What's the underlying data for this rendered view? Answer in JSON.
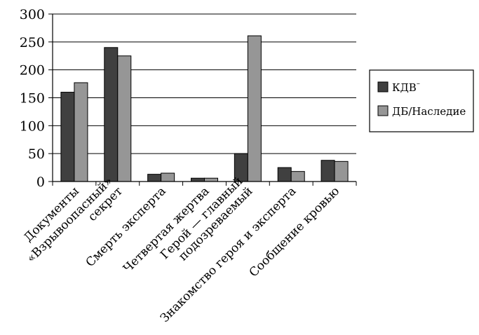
{
  "chart_data": {
    "type": "bar",
    "categories": [
      [
        "Документы"
      ],
      [
        "«Взрывоопасный»",
        "секрет"
      ],
      [
        "Смерть эксперта"
      ],
      [
        "Четвертая жертва"
      ],
      [
        "Герой — главный",
        "подозреваемый"
      ],
      [
        "Знакомство героя и эксперта"
      ],
      [
        "Сообщение кровью"
      ]
    ],
    "series": [
      {
        "name": "КДВ",
        "name_superscript": "–",
        "color": "#404040",
        "values": [
          160,
          240,
          13,
          6,
          50,
          25,
          38
        ]
      },
      {
        "name": "ДБ/Наследие",
        "color": "#969696",
        "values": [
          177,
          225,
          15,
          6,
          261,
          18,
          36
        ]
      }
    ],
    "ylim": [
      0,
      300
    ],
    "yticks": [
      0,
      50,
      100,
      150,
      200,
      250,
      300
    ],
    "grid": true,
    "legend_position": "right"
  }
}
